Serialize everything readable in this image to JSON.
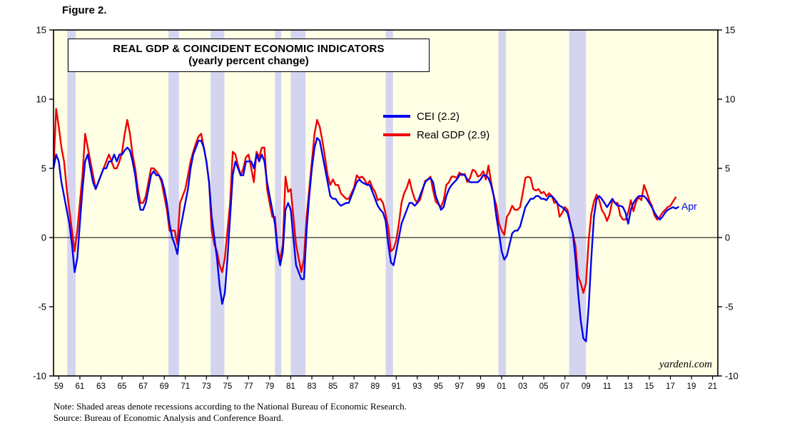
{
  "figure_label": "Figure 2.",
  "notes": {
    "note": "Note: Shaded areas denote recessions according to the National Bureau of Economic Research.",
    "source": "Source: Bureau of Economic Analysis and Conference Board."
  },
  "chart_data": {
    "type": "line",
    "title": "REAL GDP & COINCIDENT ECONOMIC INDICATORS",
    "subtitle": "(yearly percent change)",
    "ylabel": "yearly percent change",
    "ylim": [
      -10,
      15
    ],
    "xlim": [
      1959,
      2022
    ],
    "y_ticks": [
      15,
      10,
      5,
      0,
      -5,
      -10
    ],
    "x_tick_years": [
      1959,
      1961,
      1963,
      1965,
      1967,
      1969,
      1971,
      1973,
      1975,
      1977,
      1979,
      1981,
      1983,
      1985,
      1987,
      1989,
      1991,
      1993,
      1995,
      1997,
      1999,
      2001,
      2003,
      2005,
      2007,
      2009,
      2011,
      2013,
      2015,
      2017,
      2019,
      2021
    ],
    "x_tick_labels": [
      "59",
      "61",
      "63",
      "65",
      "67",
      "69",
      "71",
      "73",
      "75",
      "77",
      "79",
      "81",
      "83",
      "85",
      "87",
      "89",
      "91",
      "93",
      "95",
      "97",
      "99",
      "01",
      "03",
      "05",
      "07",
      "09",
      "11",
      "13",
      "15",
      "17",
      "19",
      "21"
    ],
    "grid": false,
    "legend_position": "top-center",
    "colors": {
      "plot_bg": "#FFFFE5",
      "recession": "#D4D4F1",
      "frame": "#000000"
    },
    "recessions": [
      [
        1960.3,
        1961.1
      ],
      [
        1969.9,
        1970.9
      ],
      [
        1973.9,
        1975.2
      ],
      [
        1980.0,
        1980.6
      ],
      [
        1981.5,
        1982.9
      ],
      [
        1990.5,
        1991.2
      ],
      [
        2001.2,
        2001.9
      ],
      [
        2007.9,
        2009.5
      ]
    ],
    "annotations": [
      {
        "text": "Apr",
        "x": 2018.55,
        "y": 2.2,
        "color": "#0000EE"
      }
    ],
    "watermark": "yardeni.com",
    "series": [
      {
        "name": "CEI (2.2)",
        "color": "#0000EE",
        "start": 1959.0,
        "step": 0.25,
        "values": [
          5.0,
          6.0,
          5.5,
          4.0,
          3.0,
          2.0,
          1.0,
          -0.5,
          -2.5,
          -1.5,
          1.0,
          3.5,
          5.5,
          6.0,
          5.0,
          4.0,
          3.5,
          4.0,
          4.5,
          5.0,
          5.0,
          5.5,
          5.5,
          6.0,
          5.5,
          6.0,
          6.0,
          6.3,
          6.5,
          6.3,
          5.5,
          4.5,
          3.0,
          2.0,
          2.0,
          2.5,
          3.5,
          4.5,
          4.8,
          4.5,
          4.5,
          4.2,
          3.5,
          2.5,
          1.0,
          0.0,
          -0.5,
          -1.2,
          0.5,
          1.5,
          2.5,
          3.5,
          5.0,
          6.0,
          6.5,
          7.0,
          7.0,
          6.5,
          5.5,
          4.0,
          1.5,
          0.0,
          -1.5,
          -3.5,
          -4.8,
          -4.0,
          -1.5,
          1.5,
          4.5,
          5.5,
          5.0,
          4.5,
          4.5,
          5.5,
          5.5,
          5.5,
          5.0,
          6.0,
          5.5,
          6.0,
          5.5,
          4.0,
          3.0,
          2.0,
          1.0,
          -1.0,
          -2.0,
          -1.0,
          2.0,
          2.5,
          2.0,
          0.0,
          -2.0,
          -2.5,
          -3.0,
          -3.0,
          0.5,
          3.0,
          5.0,
          6.5,
          7.2,
          7.0,
          6.0,
          5.0,
          4.0,
          3.0,
          2.8,
          2.8,
          2.5,
          2.3,
          2.4,
          2.5,
          2.5,
          3.0,
          3.5,
          4.0,
          4.2,
          4.0,
          3.9,
          3.8,
          3.8,
          3.3,
          2.8,
          2.3,
          2.0,
          1.8,
          1.2,
          -0.5,
          -1.8,
          -2.0,
          -1.0,
          0.0,
          1.0,
          1.5,
          2.0,
          2.5,
          2.5,
          2.3,
          2.5,
          3.0,
          3.5,
          4.0,
          4.2,
          4.3,
          4.0,
          3.0,
          2.5,
          2.0,
          2.2,
          3.0,
          3.5,
          3.8,
          4.0,
          4.2,
          4.5,
          4.6,
          4.5,
          4.2,
          4.0,
          4.0,
          4.0,
          4.0,
          4.2,
          4.5,
          4.5,
          4.3,
          3.8,
          3.0,
          1.5,
          0.3,
          -1.0,
          -1.6,
          -1.3,
          -0.5,
          0.3,
          0.5,
          0.5,
          0.8,
          1.5,
          2.2,
          2.5,
          2.8,
          2.8,
          3.0,
          3.0,
          2.8,
          2.8,
          2.7,
          3.0,
          3.0,
          2.8,
          2.5,
          2.3,
          2.2,
          2.0,
          1.8,
          1.0,
          0.3,
          -1.5,
          -4.0,
          -6.0,
          -7.3,
          -7.5,
          -5.0,
          -1.5,
          1.5,
          2.8,
          3.0,
          2.8,
          2.5,
          2.2,
          2.5,
          2.8,
          2.5,
          2.3,
          2.3,
          2.2,
          1.8,
          1.0,
          2.0,
          2.5,
          2.8,
          3.0,
          3.0,
          3.0,
          2.8,
          2.5,
          2.2,
          1.8,
          1.5,
          1.3,
          1.5,
          1.8,
          2.0,
          2.1,
          2.2,
          2.1,
          2.2
        ]
      },
      {
        "name": "Real GDP (2.9)",
        "color": "#EE0000",
        "start": 1959.0,
        "step": 0.25,
        "values": [
          5.0,
          9.3,
          8.0,
          6.5,
          5.5,
          3.5,
          2.0,
          0.5,
          -1.0,
          0.5,
          2.5,
          4.5,
          7.5,
          6.5,
          5.5,
          4.5,
          3.5,
          4.0,
          4.5,
          5.0,
          5.5,
          6.0,
          5.5,
          5.0,
          5.0,
          5.5,
          6.2,
          7.5,
          8.5,
          7.5,
          6.0,
          5.0,
          3.5,
          2.5,
          2.5,
          3.0,
          4.0,
          5.0,
          5.0,
          4.8,
          4.5,
          4.0,
          3.0,
          2.0,
          0.5,
          0.5,
          0.5,
          -0.5,
          2.5,
          3.0,
          3.5,
          4.5,
          5.5,
          6.2,
          6.8,
          7.3,
          7.5,
          6.5,
          5.5,
          4.0,
          0.5,
          -0.5,
          -1.0,
          -2.0,
          -2.5,
          -1.5,
          0.5,
          2.5,
          6.2,
          6.0,
          5.2,
          4.5,
          5.0,
          5.8,
          6.0,
          5.0,
          4.0,
          6.2,
          5.8,
          6.5,
          6.5,
          3.5,
          2.5,
          1.5,
          1.5,
          -0.8,
          -1.6,
          -0.5,
          4.4,
          3.3,
          3.5,
          1.5,
          -0.5,
          -1.5,
          -2.5,
          -1.5,
          1.5,
          3.5,
          5.5,
          7.5,
          8.5,
          8.0,
          7.0,
          5.8,
          4.5,
          3.8,
          4.2,
          3.8,
          3.8,
          3.2,
          3.0,
          2.8,
          2.8,
          3.2,
          3.6,
          4.5,
          4.3,
          4.4,
          4.2,
          3.8,
          4.1,
          3.6,
          3.3,
          2.7,
          2.8,
          2.5,
          1.7,
          0.7,
          -1.0,
          -0.8,
          -0.2,
          1.0,
          2.5,
          3.2,
          3.6,
          4.2,
          3.4,
          2.8,
          2.5,
          2.7,
          3.4,
          4.1,
          4.2,
          4.4,
          3.4,
          2.6,
          2.4,
          2.2,
          2.7,
          3.8,
          4.0,
          4.4,
          4.4,
          4.3,
          4.7,
          4.5,
          4.6,
          4.0,
          4.3,
          4.9,
          4.8,
          4.4,
          4.5,
          4.8,
          4.2,
          5.2,
          4.0,
          3.0,
          2.3,
          1.0,
          0.5,
          0.2,
          1.5,
          1.8,
          2.3,
          2.0,
          2.0,
          2.2,
          3.2,
          4.3,
          4.4,
          4.3,
          3.5,
          3.4,
          3.5,
          3.2,
          3.3,
          3.0,
          3.2,
          3.0,
          2.5,
          2.6,
          1.5,
          1.8,
          2.2,
          2.0,
          1.1,
          0.3,
          -0.6,
          -2.8,
          -3.3,
          -4.0,
          -3.3,
          -0.2,
          1.7,
          2.6,
          3.1,
          2.7,
          2.0,
          1.7,
          1.2,
          1.7,
          2.7,
          2.5,
          2.5,
          1.6,
          1.3,
          1.3,
          1.8,
          2.7,
          1.9,
          2.6,
          2.9,
          2.7,
          3.8,
          3.3,
          2.7,
          2.3,
          1.6,
          1.3,
          1.5,
          1.8,
          2.0,
          2.2,
          2.3,
          2.6,
          2.9
        ]
      }
    ]
  }
}
